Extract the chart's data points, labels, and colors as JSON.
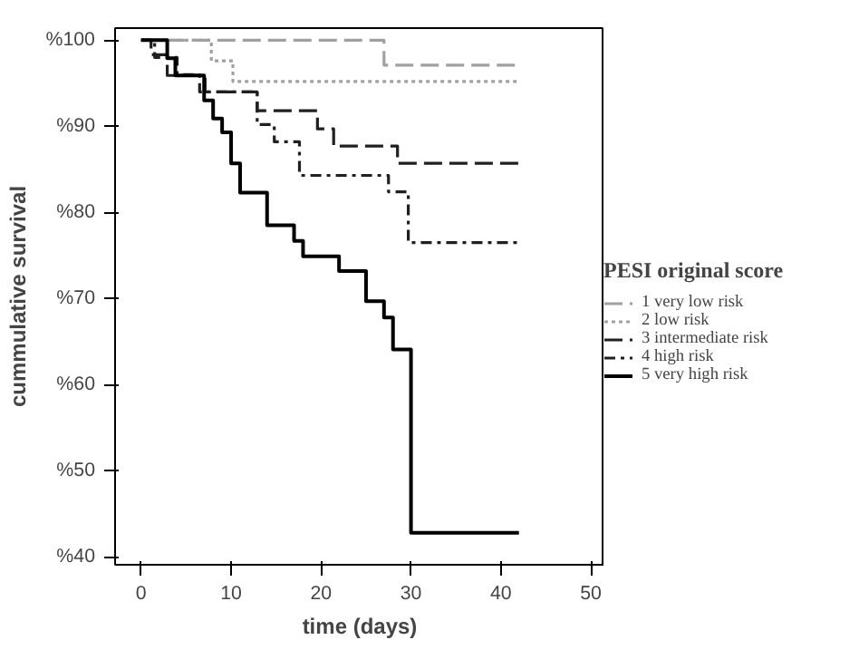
{
  "chart_data": {
    "type": "step",
    "xlabel": "time (days)",
    "ylabel": "cummulative survival",
    "legend_title": "PESI original score",
    "legend": "right",
    "grid": false,
    "xlim": [
      -2.9,
      51.5
    ],
    "ylim": [
      39.1,
      101.4
    ],
    "xticks": [
      0,
      10,
      20,
      30,
      40,
      50
    ],
    "yticks": [
      {
        "value": 40,
        "label": "%40"
      },
      {
        "value": 50,
        "label": "%50"
      },
      {
        "value": 60,
        "label": "%60"
      },
      {
        "value": 70,
        "label": "%70"
      },
      {
        "value": 80,
        "label": "%80"
      },
      {
        "value": 90,
        "label": "%90"
      },
      {
        "value": 100,
        "label": "%100"
      }
    ],
    "series": [
      {
        "name": "1 very low risk",
        "color": "#a0a0a0",
        "line_style": "dashed",
        "x": [
          0,
          27,
          42
        ],
        "values": [
          100,
          97.1,
          97.1
        ]
      },
      {
        "name": "2 low risk",
        "color": "#a0a0a0",
        "line_style": "dotted",
        "x": [
          0,
          7.8,
          10.2,
          42
        ],
        "values": [
          100,
          97.6,
          95.2,
          95.2
        ]
      },
      {
        "name": "3 intermediate risk",
        "color": "#202020",
        "line_style": "dashed",
        "x": [
          0,
          1.1,
          2.9,
          7.1,
          12.9,
          19.6,
          21.4,
          28.5,
          42
        ],
        "values": [
          100,
          98.3,
          95.9,
          94.0,
          91.8,
          89.7,
          87.7,
          85.7,
          85.7
        ]
      },
      {
        "name": "4 high risk",
        "color": "#202020",
        "line_style": "dashdot",
        "x": [
          0,
          1.5,
          4,
          6.5,
          12.9,
          14.8,
          17.6,
          27.5,
          29.7,
          42
        ],
        "values": [
          100,
          98,
          96,
          94,
          90.2,
          88.2,
          84.3,
          82.4,
          76.5,
          76.5
        ]
      },
      {
        "name": "5 very high risk",
        "color": "#000000",
        "line_style": "solid",
        "x": [
          0,
          2.9,
          3.8,
          7,
          8,
          9,
          10,
          11,
          14,
          17,
          18,
          22,
          25,
          27,
          28,
          30,
          42
        ],
        "values": [
          100,
          97.9,
          95.9,
          93.0,
          90.9,
          89.3,
          85.7,
          82.3,
          78.5,
          76.7,
          74.9,
          73.2,
          69.7,
          67.8,
          64.1,
          42.8,
          42.8
        ]
      }
    ]
  }
}
